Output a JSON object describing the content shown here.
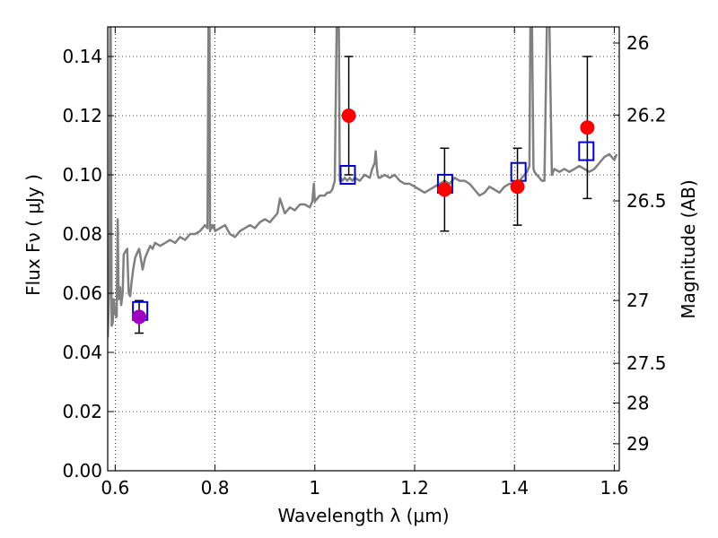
{
  "chart_data": {
    "type": "scatter",
    "title": "",
    "xlabel": "Wavelength  λ (μm)",
    "ylabel": "Flux  Fν  ( μJy )",
    "y2label": "Magnitude (AB)",
    "xlim": [
      0.585,
      1.61
    ],
    "ylim": [
      0.0,
      0.15
    ],
    "grid": true,
    "x_ticks": [
      {
        "value": 0.6,
        "label": "0.6"
      },
      {
        "value": 0.8,
        "label": "0.8"
      },
      {
        "value": 1.0,
        "label": "1"
      },
      {
        "value": 1.2,
        "label": "1.2"
      },
      {
        "value": 1.4,
        "label": "1.4"
      },
      {
        "value": 1.6,
        "label": "1.6"
      }
    ],
    "y_ticks": [
      {
        "value": 0.0,
        "label": "0.00"
      },
      {
        "value": 0.02,
        "label": "0.02"
      },
      {
        "value": 0.04,
        "label": "0.04"
      },
      {
        "value": 0.06,
        "label": "0.06"
      },
      {
        "value": 0.08,
        "label": "0.08"
      },
      {
        "value": 0.1,
        "label": "0.10"
      },
      {
        "value": 0.12,
        "label": "0.12"
      },
      {
        "value": 0.14,
        "label": "0.14"
      }
    ],
    "y2_ticks": [
      {
        "value": 26.0,
        "label": "26"
      },
      {
        "value": 26.2,
        "label": "26.2"
      },
      {
        "value": 26.5,
        "label": "26.5"
      },
      {
        "value": 27.0,
        "label": "27"
      },
      {
        "value": 27.5,
        "label": "27.5"
      },
      {
        "value": 28.0,
        "label": "28"
      },
      {
        "value": 29.0,
        "label": "29"
      }
    ],
    "colors": {
      "spectrum": "#808080",
      "observed": "#ff0000",
      "observed_first": "#a000c0",
      "model": "#0000cc",
      "errorbar": "#000000"
    },
    "model_spectrum": {
      "x": [
        0.585,
        0.588,
        0.59,
        0.591,
        0.593,
        0.595,
        0.597,
        0.6,
        0.603,
        0.605,
        0.607,
        0.61,
        0.612,
        0.615,
        0.617,
        0.62,
        0.624,
        0.627,
        0.63,
        0.633,
        0.636,
        0.64,
        0.645,
        0.648,
        0.652,
        0.655,
        0.66,
        0.665,
        0.67,
        0.675,
        0.68,
        0.69,
        0.7,
        0.71,
        0.72,
        0.73,
        0.74,
        0.75,
        0.76,
        0.77,
        0.78,
        0.785,
        0.787,
        0.789,
        0.79,
        0.792,
        0.794,
        0.796,
        0.798,
        0.8,
        0.81,
        0.82,
        0.83,
        0.84,
        0.85,
        0.86,
        0.87,
        0.88,
        0.89,
        0.9,
        0.91,
        0.92,
        0.925,
        0.93,
        0.94,
        0.95,
        0.96,
        0.97,
        0.98,
        0.99,
        0.995,
        0.998,
        1.0,
        1.005,
        1.01,
        1.02,
        1.025,
        1.03,
        1.035,
        1.04,
        1.044,
        1.048,
        1.05,
        1.052,
        1.055,
        1.06,
        1.065,
        1.07,
        1.075,
        1.08,
        1.09,
        1.1,
        1.11,
        1.115,
        1.12,
        1.122,
        1.124,
        1.126,
        1.128,
        1.13,
        1.14,
        1.15,
        1.16,
        1.17,
        1.18,
        1.19,
        1.2,
        1.21,
        1.22,
        1.23,
        1.24,
        1.25,
        1.26,
        1.27,
        1.28,
        1.29,
        1.3,
        1.31,
        1.32,
        1.33,
        1.34,
        1.35,
        1.36,
        1.37,
        1.38,
        1.39,
        1.4,
        1.41,
        1.42,
        1.425,
        1.43,
        1.432,
        1.435,
        1.438,
        1.44,
        1.445,
        1.45,
        1.455,
        1.46,
        1.465,
        1.47,
        1.475,
        1.48,
        1.49,
        1.5,
        1.51,
        1.52,
        1.53,
        1.54,
        1.55,
        1.56,
        1.57,
        1.58,
        1.59,
        1.6,
        1.605
      ],
      "y": [
        0.045,
        0.06,
        0.152,
        0.152,
        0.049,
        0.05,
        0.058,
        0.053,
        0.052,
        0.085,
        0.058,
        0.062,
        0.056,
        0.06,
        0.073,
        0.074,
        0.075,
        0.06,
        0.059,
        0.064,
        0.068,
        0.072,
        0.074,
        0.075,
        0.071,
        0.068,
        0.072,
        0.074,
        0.076,
        0.075,
        0.077,
        0.076,
        0.077,
        0.078,
        0.077,
        0.079,
        0.078,
        0.08,
        0.08,
        0.081,
        0.083,
        0.082,
        0.152,
        0.152,
        0.081,
        0.082,
        0.083,
        0.082,
        0.083,
        0.081,
        0.082,
        0.083,
        0.08,
        0.079,
        0.081,
        0.082,
        0.083,
        0.082,
        0.084,
        0.085,
        0.084,
        0.086,
        0.087,
        0.092,
        0.087,
        0.089,
        0.088,
        0.09,
        0.09,
        0.089,
        0.091,
        0.097,
        0.091,
        0.092,
        0.093,
        0.093,
        0.094,
        0.094,
        0.095,
        0.098,
        0.152,
        0.152,
        0.098,
        0.099,
        0.098,
        0.099,
        0.098,
        0.099,
        0.098,
        0.099,
        0.098,
        0.1,
        0.099,
        0.102,
        0.104,
        0.108,
        0.103,
        0.1,
        0.099,
        0.099,
        0.1,
        0.099,
        0.1,
        0.098,
        0.097,
        0.097,
        0.096,
        0.095,
        0.094,
        0.095,
        0.096,
        0.097,
        0.098,
        0.097,
        0.099,
        0.098,
        0.098,
        0.097,
        0.095,
        0.093,
        0.094,
        0.096,
        0.095,
        0.094,
        0.096,
        0.097,
        0.097,
        0.098,
        0.1,
        0.101,
        0.103,
        0.152,
        0.152,
        0.102,
        0.101,
        0.1,
        0.099,
        0.098,
        0.098,
        0.152,
        0.152,
        0.1,
        0.102,
        0.101,
        0.102,
        0.101,
        0.102,
        0.103,
        0.102,
        0.101,
        0.102,
        0.104,
        0.106,
        0.107,
        0.105,
        0.107
      ]
    },
    "observed": [
      {
        "x": 0.648,
        "y": 0.052,
        "err": 0.0055
      },
      {
        "x": 1.068,
        "y": 0.12,
        "err": 0.02
      },
      {
        "x": 1.26,
        "y": 0.095,
        "err": 0.014
      },
      {
        "x": 1.406,
        "y": 0.096,
        "err": 0.013
      },
      {
        "x": 1.546,
        "y": 0.116,
        "err": 0.024
      }
    ],
    "model_photometry": [
      {
        "x": 0.65,
        "y": 0.054
      },
      {
        "x": 1.066,
        "y": 0.1
      },
      {
        "x": 1.261,
        "y": 0.097
      },
      {
        "x": 1.408,
        "y": 0.101
      },
      {
        "x": 1.544,
        "y": 0.108
      }
    ]
  }
}
